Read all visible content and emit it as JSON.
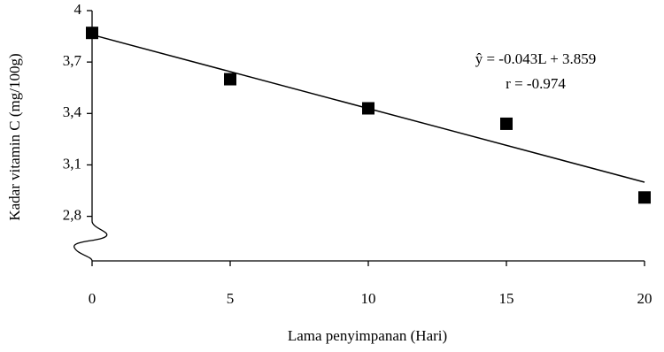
{
  "chart_data": {
    "type": "scatter",
    "x_label": "Lama penyimpanan (Hari)",
    "y_label": "Kadar vitamin C (mg/100g)",
    "annotations": [
      "ŷ = -0.043L + 3.859",
      "r = -0.974"
    ],
    "x": [
      0,
      5,
      10,
      15,
      20
    ],
    "values": [
      3.87,
      3.6,
      3.43,
      3.34,
      2.91
    ],
    "color": "#000000",
    "trend": {
      "x": [
        0,
        20
      ],
      "values": [
        3.859,
        2.999
      ]
    },
    "xlim": [
      0,
      20
    ],
    "xticks": [
      0,
      5,
      10,
      15,
      20
    ],
    "ylim": [
      2.54,
      4
    ],
    "yticks": [
      {
        "value": 2.8,
        "label": "2,8"
      },
      {
        "value": 3.1,
        "label": "3,1"
      },
      {
        "value": 3.4,
        "label": "3,4"
      },
      {
        "value": 3.7,
        "label": "3,7"
      },
      4
    ],
    "grid": false
  }
}
